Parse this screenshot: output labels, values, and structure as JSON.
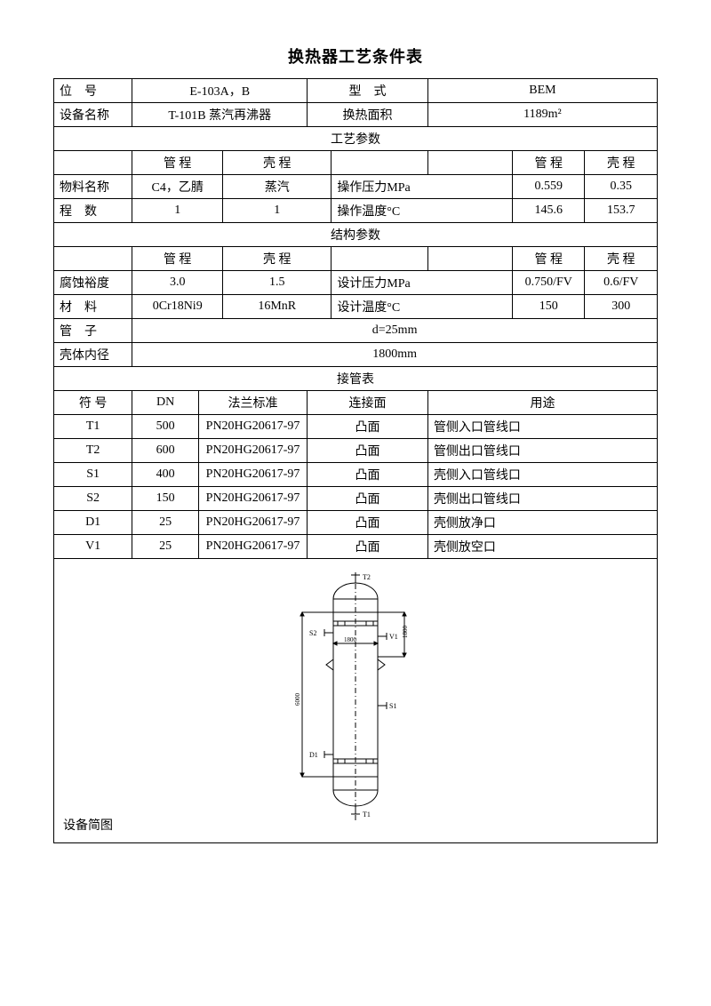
{
  "title": "换热器工艺条件表",
  "header": {
    "pos_label": "位　号",
    "pos_value": "E-103A，B",
    "type_label": "型　式",
    "type_value": "BEM",
    "equip_label": "设备名称",
    "equip_value": "T-101B 蒸汽再沸器",
    "area_label": "换热面积",
    "area_value": "1189m²"
  },
  "process": {
    "header": "工艺参数",
    "tube_label": "管 程",
    "shell_label": "壳 程",
    "material_label": "物料名称",
    "material_tube": "C4，乙腈",
    "material_shell": "蒸汽",
    "op_pressure_label": "操作压力MPa",
    "op_pressure_tube": "0.559",
    "op_pressure_shell": "0.35",
    "passes_label": "程　数",
    "passes_tube": "1",
    "passes_shell": "1",
    "op_temp_label": "操作温度°C",
    "op_temp_tube": "145.6",
    "op_temp_shell": "153.7"
  },
  "structure": {
    "header": "结构参数",
    "tube_label": "管 程",
    "shell_label": "壳 程",
    "corrosion_label": "腐蚀裕度",
    "corrosion_tube": "3.0",
    "corrosion_shell": "1.5",
    "design_pressure_label": "设计压力MPa",
    "design_pressure_tube": "0.750/FV",
    "design_pressure_shell": "0.6/FV",
    "material_label": "材　料",
    "material_tube": "0Cr18Ni9",
    "material_shell": "16MnR",
    "design_temp_label": "设计温度°C",
    "design_temp_tube": "150",
    "design_temp_shell": "300",
    "tube_label2": "管　子",
    "tube_value": "d=25mm",
    "shell_id_label": "壳体内径",
    "shell_id_value": "1800mm"
  },
  "nozzles": {
    "header": "接管表",
    "col_symbol": "符 号",
    "col_dn": "DN",
    "col_flange": "法兰标准",
    "col_face": "连接面",
    "col_use": "用途",
    "rows": [
      {
        "sym": "T1",
        "dn": "500",
        "flange": "PN20HG20617-97",
        "face": "凸面",
        "use": "管侧入口管线口"
      },
      {
        "sym": "T2",
        "dn": "600",
        "flange": "PN20HG20617-97",
        "face": "凸面",
        "use": "管侧出口管线口"
      },
      {
        "sym": "S1",
        "dn": "400",
        "flange": "PN20HG20617-97",
        "face": "凸面",
        "use": "壳侧入口管线口"
      },
      {
        "sym": "S2",
        "dn": "150",
        "flange": "PN20HG20617-97",
        "face": "凸面",
        "use": "壳侧出口管线口"
      },
      {
        "sym": "D1",
        "dn": "25",
        "flange": "PN20HG20617-97",
        "face": "凸面",
        "use": "壳侧放净口"
      },
      {
        "sym": "V1",
        "dn": "25",
        "flange": "PN20HG20617-97",
        "face": "凸面",
        "use": "壳侧放空口"
      }
    ]
  },
  "diagram": {
    "label": "设备简图",
    "annotations": {
      "t2": "T2",
      "t1": "T1",
      "s2": "S2",
      "v1": "V1",
      "s1": "S1",
      "d1": "D1",
      "width": "1800",
      "height_right": "1800",
      "height_left": "6000"
    },
    "stroke": "#000000",
    "fill": "#ffffff",
    "line_width": 1
  }
}
